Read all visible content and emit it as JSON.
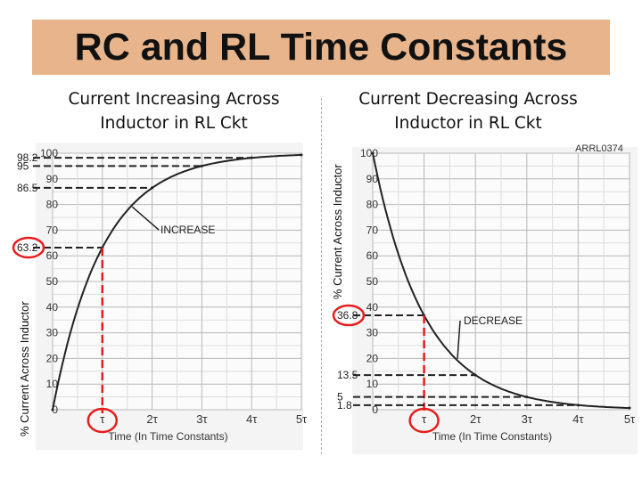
{
  "title": "RC and RL Time Constants",
  "colors": {
    "banner": "#e8b48b",
    "highlight": "#e41e1e",
    "curve": "#222222"
  },
  "panels": {
    "left": {
      "subtitle_line1": "Current Increasing Across",
      "subtitle_line2": "Inductor in RL Ckt",
      "ylabel": "% Current Across Inductor"
    },
    "right": {
      "subtitle_line1": "Current Decreasing Across",
      "subtitle_line2": "Inductor in RL Ckt",
      "ylabel": "% Current Across Inductor"
    }
  },
  "chart_data": [
    {
      "type": "line",
      "series": [
        {
          "name": "INCREASE",
          "x": [
            0,
            1,
            2,
            3,
            4,
            5
          ],
          "y": [
            0,
            63.2,
            86.5,
            95,
            98.2,
            99.3
          ]
        }
      ],
      "curve_label": "INCREASE",
      "xlabel": "Time (In Time Constants)",
      "ylabel": "% Current Across Inductor",
      "x_ticks": [
        "τ",
        "2τ",
        "3τ",
        "4τ",
        "5τ"
      ],
      "y_ticks": [
        "0",
        "10",
        "20",
        "30",
        "40",
        "50",
        "60",
        "70",
        "80",
        "90",
        "100"
      ],
      "marked_values": [
        "98.2",
        "95",
        "86.5",
        "63.2"
      ],
      "highlight_y": "63.2",
      "highlight_x": "τ",
      "xlim": [
        0,
        5
      ],
      "ylim": [
        0,
        100
      ]
    },
    {
      "type": "line",
      "series": [
        {
          "name": "DECREASE",
          "x": [
            0,
            1,
            2,
            3,
            4,
            5
          ],
          "y": [
            100,
            36.8,
            13.5,
            5,
            1.8,
            0.7
          ]
        }
      ],
      "curve_label": "DECREASE",
      "xlabel": "Time (In Time Constants)",
      "ylabel": "% Current Across Inductor",
      "x_ticks": [
        "τ",
        "2τ",
        "3τ",
        "4τ",
        "5τ"
      ],
      "y_ticks": [
        "0",
        "10",
        "20",
        "30",
        "40",
        "50",
        "60",
        "70",
        "80",
        "90",
        "100"
      ],
      "marked_values": [
        "36.8",
        "13.5",
        "5",
        "1.8"
      ],
      "highlight_y": "36.8",
      "highlight_x": "τ",
      "code": "ARRL0374",
      "xlim": [
        0,
        5
      ],
      "ylim": [
        0,
        100
      ]
    }
  ]
}
